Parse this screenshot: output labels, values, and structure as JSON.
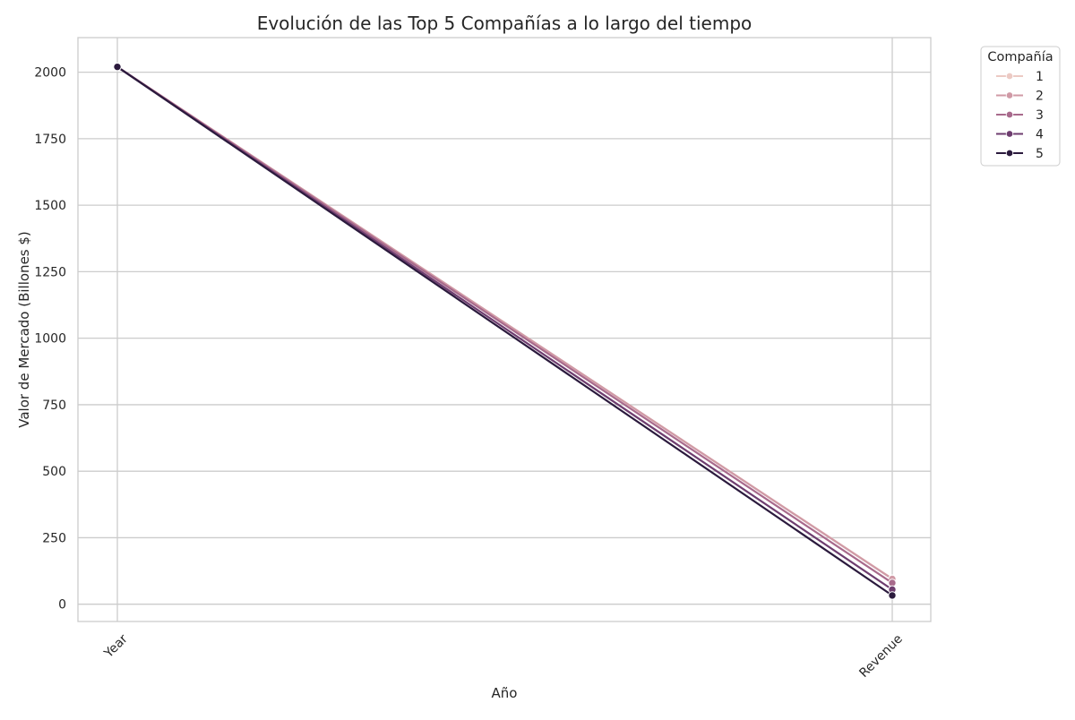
{
  "chart_data": {
    "type": "line",
    "title": "Evolución de las Top 5 Compañías a lo largo del tiempo",
    "xlabel": "Año",
    "ylabel": "Valor de Mercado (Billones $)",
    "categories": [
      "Year",
      "Revenue"
    ],
    "ylim": [
      -65,
      2130
    ],
    "yticks": [
      0,
      250,
      500,
      750,
      1000,
      1250,
      1500,
      1750,
      2000
    ],
    "grid": true,
    "legend": {
      "title": "Compañía",
      "position": "top-right-outside"
    },
    "series": [
      {
        "name": "1",
        "color": "#eccac4",
        "values": [
          2020,
          96
        ]
      },
      {
        "name": "2",
        "color": "#d09aa6",
        "values": [
          2020,
          95
        ]
      },
      {
        "name": "3",
        "color": "#a86a8c",
        "values": [
          2020,
          80
        ]
      },
      {
        "name": "4",
        "color": "#6e3d6f",
        "values": [
          2020,
          55
        ]
      },
      {
        "name": "5",
        "color": "#2b1a3d",
        "values": [
          2020,
          33
        ]
      }
    ]
  }
}
